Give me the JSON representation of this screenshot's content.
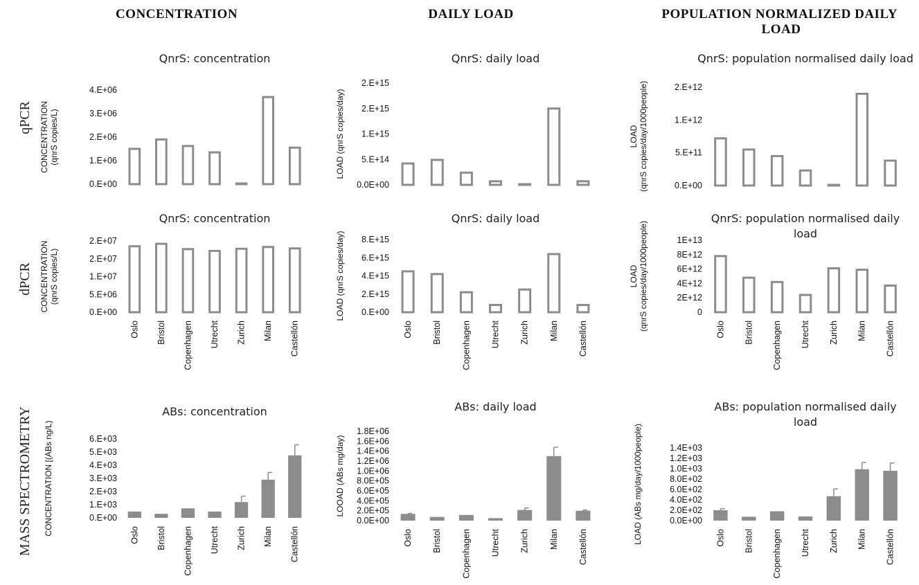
{
  "column_headers": [
    "CONCENTRATION",
    "DAILY LOAD",
    "POPULATION NORMALIZED DAILY LOAD"
  ],
  "row_labels": [
    "qPCR",
    "dPCR",
    "MASS SPECTROMETRY"
  ],
  "colors": {
    "bar": "#8c8c8c",
    "text": "#111111"
  },
  "chart_data": [
    {
      "type": "bar",
      "style": "outline",
      "title": "QnrS: concentration",
      "ylabel": "CONCENTRATION (qnrS copies/L)",
      "categories": [
        "Oslo",
        "Bristol",
        "Copenhagen",
        "Utrecht",
        "Zurich",
        "Milan",
        "Castellón"
      ],
      "show_categories": false,
      "values": [
        1500000,
        1900000,
        1620000,
        1350000,
        0,
        3700000,
        1550000
      ],
      "ylim": [
        0,
        4000000
      ],
      "ticks": [
        0,
        1000000,
        2000000,
        3000000,
        4000000
      ],
      "tick_labels": [
        "0.E+00",
        "1.E+06",
        "2.E+06",
        "3.E+06",
        "4.E+06"
      ]
    },
    {
      "type": "bar",
      "style": "outline",
      "title": "QnrS: daily load",
      "ylabel": "LOAD (qnrS copies/day)",
      "categories": [
        "Oslo",
        "Bristol",
        "Copenhagen",
        "Utrecht",
        "Zurich",
        "Milan",
        "Castellón"
      ],
      "show_categories": false,
      "values": [
        420000000000000,
        490000000000000,
        240000000000000,
        70000000000000,
        0,
        1500000000000000,
        70000000000000
      ],
      "ylim": [
        0,
        2000000000000000
      ],
      "ticks": [
        0,
        500000000000000,
        1000000000000000,
        1500000000000000,
        2000000000000000
      ],
      "tick_labels": [
        "0.0E+00",
        "5.E+14",
        "1.E+15",
        "2.E+15",
        "2.E+15"
      ]
    },
    {
      "type": "bar",
      "style": "outline",
      "title": "QnrS: population normalised daily load",
      "ylabel": "LOAD (qnrS copies/day/1000people)",
      "categories": [
        "Oslo",
        "Bristol",
        "Copenhagen",
        "Utrecht",
        "Zurich",
        "Milan",
        "Castellón"
      ],
      "show_categories": false,
      "values": [
        720000000000,
        550000000000,
        450000000000,
        230000000000,
        0,
        1400000000000,
        380000000000
      ],
      "ylim": [
        0,
        1500000000000
      ],
      "ticks": [
        0,
        500000000000,
        1000000000000,
        1500000000000
      ],
      "tick_labels": [
        "0.E+00",
        "5.E+11",
        "1.E+12",
        "2.E+12"
      ]
    },
    {
      "type": "bar",
      "style": "outline",
      "title": "QnrS: concentration",
      "ylabel": "CONCENTRATION (qnrS copies/L)",
      "categories": [
        "Oslo",
        "Bristol",
        "Copenhagen",
        "Utrecht",
        "Zurich",
        "Milan",
        "Castellón"
      ],
      "show_categories": true,
      "values": [
        18500000,
        19200000,
        17700000,
        17200000,
        17800000,
        18300000,
        17900000
      ],
      "ylim": [
        0,
        20000000
      ],
      "ticks": [
        0,
        5000000,
        10000000,
        15000000,
        20000000
      ],
      "tick_labels": [
        "0.E+00",
        "5.E+06",
        "1.E+07",
        "2.E+07",
        "2.E+07"
      ]
    },
    {
      "type": "bar",
      "style": "outline",
      "title": "QnrS: daily load",
      "ylabel": "LOAD (qnrS copies/day)",
      "categories": [
        "Oslo",
        "Bristol",
        "Copenhagen",
        "Utrecht",
        "Zurich",
        "Milan",
        "Castellón"
      ],
      "show_categories": true,
      "values": [
        4500000000000000,
        4200000000000000,
        2200000000000000,
        800000000000000,
        2500000000000000,
        6400000000000000,
        800000000000000
      ],
      "ylim": [
        0,
        8000000000000000
      ],
      "ticks": [
        0,
        2000000000000000,
        4000000000000000,
        6000000000000000,
        8000000000000000
      ],
      "tick_labels": [
        "0.E+00",
        "2.E+15",
        "4.E+15",
        "6.E+15",
        "8.E+15"
      ]
    },
    {
      "type": "bar",
      "style": "outline",
      "title": "QnrS: population normalised daily load",
      "ylabel": "LOAD (qnrS copies/day/1000people)",
      "categories": [
        "Oslo",
        "Bristol",
        "Copenhagen",
        "Utrecht",
        "Zurich",
        "Milan",
        "Castellón"
      ],
      "show_categories": true,
      "values": [
        7800000000000,
        4800000000000,
        4200000000000,
        2400000000000,
        6100000000000,
        5900000000000,
        3700000000000
      ],
      "ylim": [
        0,
        10000000000000
      ],
      "ticks": [
        0,
        2000000000000,
        4000000000000,
        6000000000000,
        8000000000000,
        10000000000000
      ],
      "tick_labels": [
        "0",
        "2E+12",
        "4E+12",
        "6E+12",
        "8E+12",
        "1E+13"
      ]
    },
    {
      "type": "bar",
      "style": "filled",
      "title": "ABs: concentration",
      "ylabel": "CONCENTRATION [(ABs ng/L)",
      "categories": [
        "Oslo",
        "Bristol",
        "Copenhagen",
        "Utrecht",
        "Zurich",
        "Milan",
        "Castellón"
      ],
      "show_categories": true,
      "values": [
        480,
        310,
        720,
        480,
        1200,
        2900,
        4750
      ],
      "errors": [
        0,
        0,
        0,
        0,
        450,
        550,
        800
      ],
      "ylim": [
        0,
        6000
      ],
      "ticks": [
        0,
        1000,
        2000,
        3000,
        4000,
        5000,
        6000
      ],
      "tick_labels": [
        "0.E+00",
        "1.E+03",
        "2.E+03",
        "3.E+03",
        "4.E+03",
        "5.E+03",
        "6.E+03"
      ]
    },
    {
      "type": "bar",
      "style": "filled",
      "title": "ABs: daily load",
      "ylabel": "LOOAD (ABs mg/day)",
      "categories": [
        "Oslo",
        "Bristol",
        "Copenhagen",
        "Utrecht",
        "Zurich",
        "Milan",
        "Castellón"
      ],
      "show_categories": true,
      "values": [
        135000,
        75000,
        115000,
        50000,
        215000,
        1300000,
        200000
      ],
      "errors": [
        10000,
        0,
        0,
        0,
        40000,
        180000,
        15000
      ],
      "ylim": [
        0,
        1800000
      ],
      "ticks": [
        0,
        200000,
        400000,
        600000,
        800000,
        1000000,
        1200000,
        1400000,
        1600000,
        1800000
      ],
      "tick_labels": [
        "0.0E+00",
        "2.0E+05",
        "4.0E+05",
        "6.0E+05",
        "8.0E+05",
        "1.0E+06",
        "1.2E+06",
        "1.4E+06",
        "1.6E+06",
        "1.8E+06"
      ],
      "tick_label_overrides": [
        "0.0E+00",
        "2.0E+05",
        "4.0E+05",
        "6.0E+05",
        "8.0E+05",
        "1.0E+06",
        "1.2E+06",
        "1.4E+06",
        "1.6E+06",
        "1.8E+06"
      ]
    },
    {
      "type": "bar",
      "style": "filled",
      "title": "ABs: population normalised daily load",
      "ylabel": "LOAD (ABs mg/day/1000people)",
      "categories": [
        "Oslo",
        "Bristol",
        "Copenhagen",
        "Utrecht",
        "Zurich",
        "Milan",
        "Castellón"
      ],
      "show_categories": true,
      "values": [
        200,
        75,
        180,
        80,
        470,
        990,
        960
      ],
      "errors": [
        30,
        0,
        0,
        0,
        140,
        130,
        150
      ],
      "ylim": [
        0,
        1400
      ],
      "ticks": [
        0,
        200,
        400,
        600,
        800,
        1000,
        1200,
        1400
      ],
      "tick_labels": [
        "0.0E+00",
        "2.0E+02",
        "4.0E+02",
        "6.0E+02",
        "8.0E+02",
        "1.0E+03",
        "1.2E+03",
        "1.4E+03"
      ]
    }
  ]
}
